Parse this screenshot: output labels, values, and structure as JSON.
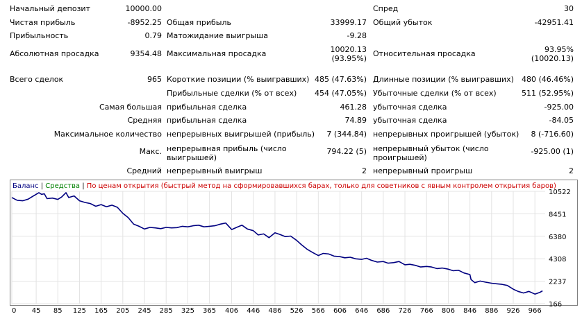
{
  "stats": {
    "initial_deposit": {
      "label": "Начальный депозит",
      "value": "10000.00"
    },
    "spread": {
      "label": "Спред",
      "value": "30"
    },
    "net_profit": {
      "label": "Чистая прибыль",
      "value": "-8952.25"
    },
    "gross_profit": {
      "label": "Общая прибыль",
      "value": "33999.17"
    },
    "gross_loss": {
      "label": "Общий убыток",
      "value": "-42951.41"
    },
    "profit_factor": {
      "label": "Прибыльность",
      "value": "0.79"
    },
    "expected_payoff": {
      "label": "Матожидание выигрыша",
      "value": "-9.28"
    },
    "abs_drawdown": {
      "label": "Абсолютная просадка",
      "value": "9354.48"
    },
    "max_drawdown": {
      "label": "Максимальная просадка",
      "value1": "10020.13",
      "value2": "(93.95%)"
    },
    "rel_drawdown": {
      "label": "Относительная просадка",
      "value1": "93.95%",
      "value2": "(10020.13)"
    },
    "total_trades": {
      "label": "Всего сделок",
      "value": "965"
    },
    "short_positions": {
      "label": "Короткие позиции (% выигравших)",
      "value": "485 (47.63%)"
    },
    "long_positions": {
      "label": "Длинные позиции (% выигравших)",
      "value": "480 (46.46%)"
    },
    "profit_trades": {
      "label": "Прибыльные сделки (% от всех)",
      "value": "454 (47.05%)"
    },
    "loss_trades": {
      "label": "Убыточные сделки (% от всех)",
      "value": "511 (52.95%)"
    },
    "largest": {
      "label": "Самая большая",
      "profit_label": "прибыльная сделка",
      "profit_value": "461.28",
      "loss_label": "убыточная сделка",
      "loss_value": "-925.00"
    },
    "average": {
      "label": "Средняя",
      "profit_label": "прибыльная сделка",
      "profit_value": "74.89",
      "loss_label": "убыточная сделка",
      "loss_value": "-84.05"
    },
    "max_count": {
      "label": "Максимальное количество",
      "wins_label": "непрерывных выигрышей (прибыль)",
      "wins_value": "7 (344.84)",
      "losses_label": "непрерывных проигрышей (убыток)",
      "losses_value": "8 (-716.60)"
    },
    "maximal": {
      "label": "Макс.",
      "profit_label": "непрерывная прибыль (число выигрышей)",
      "profit_value": "794.22 (5)",
      "loss_label": "непрерывный убыток (число проигрышей)",
      "loss_value": "-925.00 (1)"
    },
    "average_consec": {
      "label": "Средний",
      "wins_label": "непрерывный выигрыш",
      "wins_value": "2",
      "losses_label": "непрерывный проигрыш",
      "losses_value": "2"
    }
  },
  "chart_header": {
    "balance": "Баланс",
    "equity": "Средства",
    "mode": "По ценам открытия (быстрый метод на сформировавшихся барах, только для советников с явным контролем открытия баров)",
    "colors": {
      "balance": "#000080",
      "equity": "#008000",
      "mode": "#cc0000"
    }
  },
  "chart_data": {
    "type": "line",
    "xlabel": "",
    "ylabel": "",
    "x_ticks": [
      "0",
      "45",
      "85",
      "125",
      "165",
      "205",
      "245",
      "285",
      "325",
      "365",
      "406",
      "446",
      "486",
      "526",
      "566",
      "606",
      "646",
      "686",
      "726",
      "766",
      "806",
      "846",
      "886",
      "926",
      "966"
    ],
    "y_ticks": [
      "10522",
      "8451",
      "6380",
      "4308",
      "2237",
      "166"
    ],
    "xlim": [
      0,
      985
    ],
    "ylim": [
      166,
      10522
    ],
    "series": [
      {
        "name": "Баланс",
        "color": "#000080",
        "points": [
          [
            0,
            9950
          ],
          [
            10,
            9700
          ],
          [
            20,
            9650
          ],
          [
            30,
            9800
          ],
          [
            40,
            10100
          ],
          [
            50,
            10400
          ],
          [
            55,
            10250
          ],
          [
            60,
            10300
          ],
          [
            65,
            9850
          ],
          [
            75,
            9900
          ],
          [
            85,
            9780
          ],
          [
            92,
            10000
          ],
          [
            100,
            10400
          ],
          [
            105,
            9950
          ],
          [
            115,
            10100
          ],
          [
            125,
            9650
          ],
          [
            135,
            9500
          ],
          [
            145,
            9400
          ],
          [
            155,
            9150
          ],
          [
            165,
            9300
          ],
          [
            175,
            9100
          ],
          [
            185,
            9250
          ],
          [
            195,
            9050
          ],
          [
            205,
            8500
          ],
          [
            215,
            8100
          ],
          [
            225,
            7500
          ],
          [
            235,
            7300
          ],
          [
            245,
            7050
          ],
          [
            255,
            7200
          ],
          [
            265,
            7150
          ],
          [
            275,
            7080
          ],
          [
            285,
            7200
          ],
          [
            295,
            7150
          ],
          [
            305,
            7180
          ],
          [
            315,
            7300
          ],
          [
            325,
            7250
          ],
          [
            335,
            7350
          ],
          [
            345,
            7400
          ],
          [
            355,
            7250
          ],
          [
            365,
            7300
          ],
          [
            375,
            7350
          ],
          [
            385,
            7500
          ],
          [
            395,
            7600
          ],
          [
            406,
            7000
          ],
          [
            415,
            7200
          ],
          [
            425,
            7400
          ],
          [
            435,
            7050
          ],
          [
            446,
            6900
          ],
          [
            455,
            6500
          ],
          [
            465,
            6600
          ],
          [
            475,
            6250
          ],
          [
            486,
            6700
          ],
          [
            495,
            6550
          ],
          [
            505,
            6350
          ],
          [
            515,
            6400
          ],
          [
            526,
            6000
          ],
          [
            535,
            5600
          ],
          [
            545,
            5200
          ],
          [
            555,
            4900
          ],
          [
            566,
            4600
          ],
          [
            575,
            4800
          ],
          [
            585,
            4750
          ],
          [
            595,
            4550
          ],
          [
            606,
            4500
          ],
          [
            615,
            4400
          ],
          [
            625,
            4450
          ],
          [
            635,
            4300
          ],
          [
            646,
            4250
          ],
          [
            655,
            4350
          ],
          [
            665,
            4150
          ],
          [
            675,
            4000
          ],
          [
            686,
            4050
          ],
          [
            695,
            3900
          ],
          [
            705,
            3950
          ],
          [
            715,
            4050
          ],
          [
            726,
            3750
          ],
          [
            735,
            3800
          ],
          [
            745,
            3700
          ],
          [
            755,
            3550
          ],
          [
            766,
            3600
          ],
          [
            775,
            3550
          ],
          [
            785,
            3400
          ],
          [
            795,
            3450
          ],
          [
            806,
            3350
          ],
          [
            815,
            3200
          ],
          [
            825,
            3250
          ],
          [
            835,
            3000
          ],
          [
            846,
            2850
          ],
          [
            848,
            2400
          ],
          [
            855,
            2100
          ],
          [
            865,
            2250
          ],
          [
            875,
            2150
          ],
          [
            886,
            2050
          ],
          [
            895,
            2000
          ],
          [
            905,
            1950
          ],
          [
            915,
            1850
          ],
          [
            926,
            1500
          ],
          [
            935,
            1300
          ],
          [
            945,
            1150
          ],
          [
            955,
            1300
          ],
          [
            966,
            1050
          ],
          [
            975,
            1200
          ],
          [
            980,
            1350
          ]
        ]
      }
    ]
  }
}
